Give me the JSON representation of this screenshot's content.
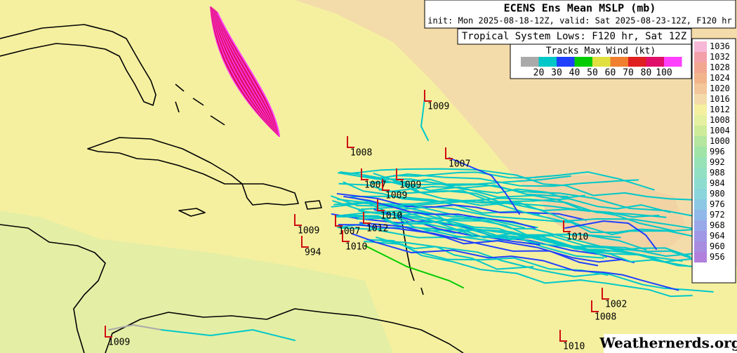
{
  "title": "ECENS Ens Mean MSLP (mb)",
  "subtitle": "init: Mon 2025-08-18-12Z, valid: Sat 2025-08-23-12Z, F120 hr",
  "lows_title": "Tropical System Lows: F120 hr, Sat 12Z",
  "wind_scale": {
    "title": "Tracks Max Wind (kt)",
    "labels": [
      "20",
      "30",
      "40",
      "50",
      "60",
      "70",
      "80",
      "100"
    ],
    "colors": [
      "#aaaaaa",
      "#00c8c8",
      "#2040ff",
      "#00cc00",
      "#e0e040",
      "#f08030",
      "#e02020",
      "#e0106a",
      "#ff40ff"
    ]
  },
  "pressure_scale": {
    "labels": [
      "1036",
      "1032",
      "1028",
      "1024",
      "1020",
      "1016",
      "1012",
      "1008",
      "1004",
      "1000",
      "996",
      "992",
      "988",
      "984",
      "980",
      "976",
      "972",
      "968",
      "964",
      "960",
      "956"
    ],
    "colors": [
      "#f7b8d8",
      "#f4a0a8",
      "#f2a890",
      "#f2b48a",
      "#f3c79a",
      "#f3dcaa",
      "#f5f0a0",
      "#e5f0a0",
      "#cdeb98",
      "#b4e6a0",
      "#a0e4a8",
      "#98e2b8",
      "#92e0c4",
      "#8cdcd0",
      "#8ad4dc",
      "#8cc8e4",
      "#90b8e8",
      "#98a8e8",
      "#a098e4",
      "#a88ce0",
      "#b080dc"
    ]
  },
  "lows": [
    {
      "label": "1009"
    },
    {
      "label": "1007"
    },
    {
      "label": "1008"
    },
    {
      "label": "1009"
    },
    {
      "label": "1010"
    },
    {
      "label": "1002"
    },
    {
      "label": "1008"
    },
    {
      "label": "1010"
    },
    {
      "label": "1009"
    },
    {
      "label": "994"
    },
    {
      "label": "1009"
    },
    {
      "label": "1012"
    },
    {
      "label": "1010"
    },
    {
      "label": "1007"
    },
    {
      "label": "1010"
    },
    {
      "label": "1007"
    },
    {
      "label": "1009"
    }
  ],
  "watermark": "Weathernerds.org"
}
